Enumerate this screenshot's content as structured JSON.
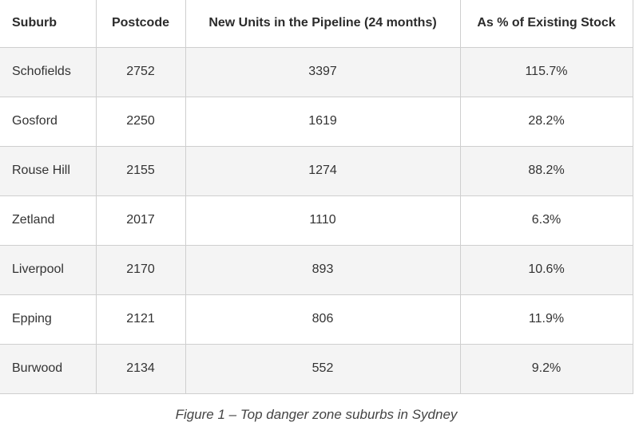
{
  "table": {
    "headers": [
      "Suburb",
      "Postcode",
      "New Units in the Pipeline (24 months)",
      "As % of Existing Stock"
    ],
    "rows": [
      [
        "Schofields",
        "2752",
        "3397",
        "115.7%"
      ],
      [
        "Gosford",
        "2250",
        "1619",
        "28.2%"
      ],
      [
        "Rouse Hill",
        "2155",
        "1274",
        "88.2%"
      ],
      [
        "Zetland",
        "2017",
        "1110",
        "6.3%"
      ],
      [
        "Liverpool",
        "2170",
        "893",
        "10.6%"
      ],
      [
        "Epping",
        "2121",
        "806",
        "11.9%"
      ],
      [
        "Burwood",
        "2134",
        "552",
        "9.2%"
      ]
    ]
  },
  "caption": "Figure 1 – Top danger zone suburbs in Sydney",
  "colors": {
    "row_stripe": "#f4f4f4",
    "border": "#cfcfcf",
    "text": "#333333"
  }
}
